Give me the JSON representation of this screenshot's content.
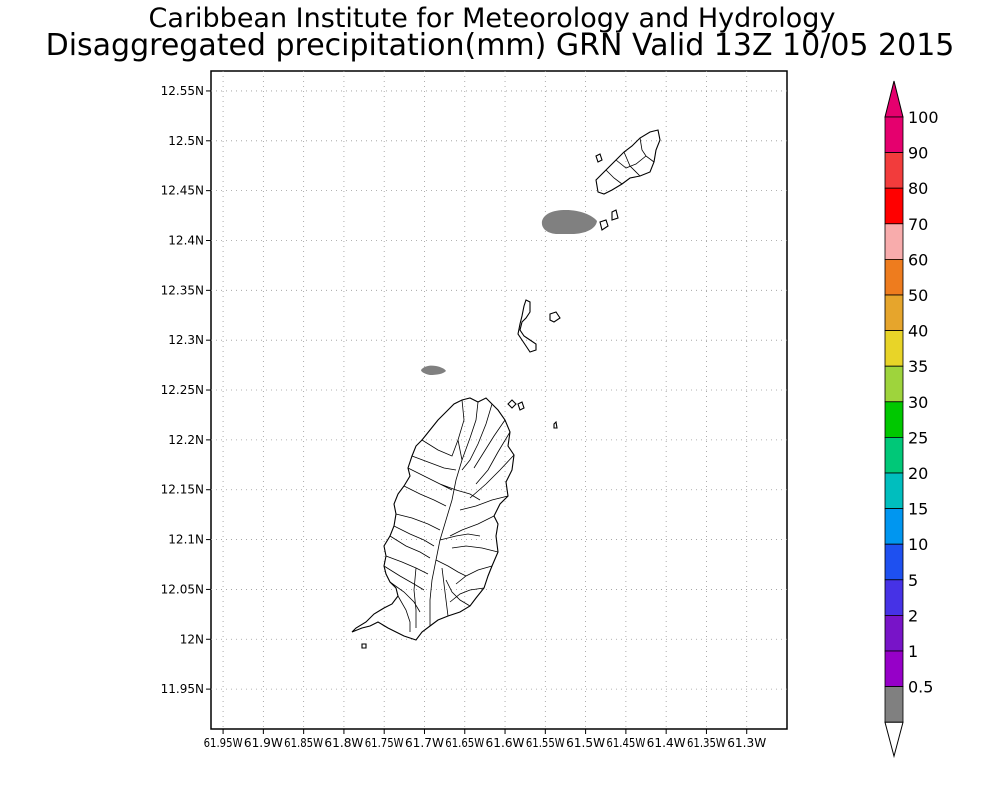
{
  "title": "Caribbean Institute for Meteorology and Hydrology",
  "subtitle": "Disaggregated precipitation(mm) GRN Valid 13Z 10/05 2015",
  "map": {
    "lat_ticks": [
      "12.55N",
      "12.5N",
      "12.45N",
      "12.4N",
      "12.35N",
      "12.3N",
      "12.25N",
      "12.2N",
      "12.15N",
      "12.1N",
      "12.05N",
      "12N",
      "11.95N"
    ],
    "lat_values": [
      12.55,
      12.5,
      12.45,
      12.4,
      12.35,
      12.3,
      12.25,
      12.2,
      12.15,
      12.1,
      12.05,
      12.0,
      11.95
    ],
    "lon_ticks": [
      "61.95W",
      "61.9W",
      "61.85W",
      "61.8W",
      "61.75W",
      "61.7W",
      "61.65W",
      "61.6W",
      "61.55W",
      "61.5W",
      "61.45W",
      "61.4W",
      "61.35W",
      "61.3W"
    ],
    "lon_values": [
      -61.95,
      -61.9,
      -61.85,
      -61.8,
      -61.75,
      -61.7,
      -61.65,
      -61.6,
      -61.55,
      -61.5,
      -61.45,
      -61.4,
      -61.35,
      -61.3
    ],
    "lat_range": [
      11.91,
      12.57
    ],
    "lon_range": [
      -61.965,
      -61.25
    ],
    "grid": true,
    "grid_style": "dotted",
    "precip_areas": [
      {
        "label": "0.5-1 mm",
        "center_lon": -61.545,
        "center_lat": 12.41,
        "color": "#808080"
      },
      {
        "label": "0.5-1 mm",
        "center_lon": -61.698,
        "center_lat": 12.263,
        "color": "#808080"
      }
    ],
    "land_outline_color": "#000000",
    "ocean_color": "#ffffff"
  },
  "legend": {
    "labels": [
      "100",
      "90",
      "80",
      "70",
      "60",
      "50",
      "40",
      "35",
      "30",
      "25",
      "20",
      "15",
      "10",
      "5",
      "2",
      "1",
      "0.5"
    ],
    "colors": [
      "#e5006e",
      "#f23c3c",
      "#ff0000",
      "#f8acac",
      "#ee7c1e",
      "#e6a52c",
      "#e8d428",
      "#9ed43c",
      "#00c800",
      "#00c878",
      "#00bebe",
      "#0096f0",
      "#1e50f0",
      "#4632e6",
      "#7814c8",
      "#9600c8",
      "#808080"
    ],
    "top_triangle_color": "#e5006e",
    "bottom_triangle_color": "#ffffff"
  }
}
